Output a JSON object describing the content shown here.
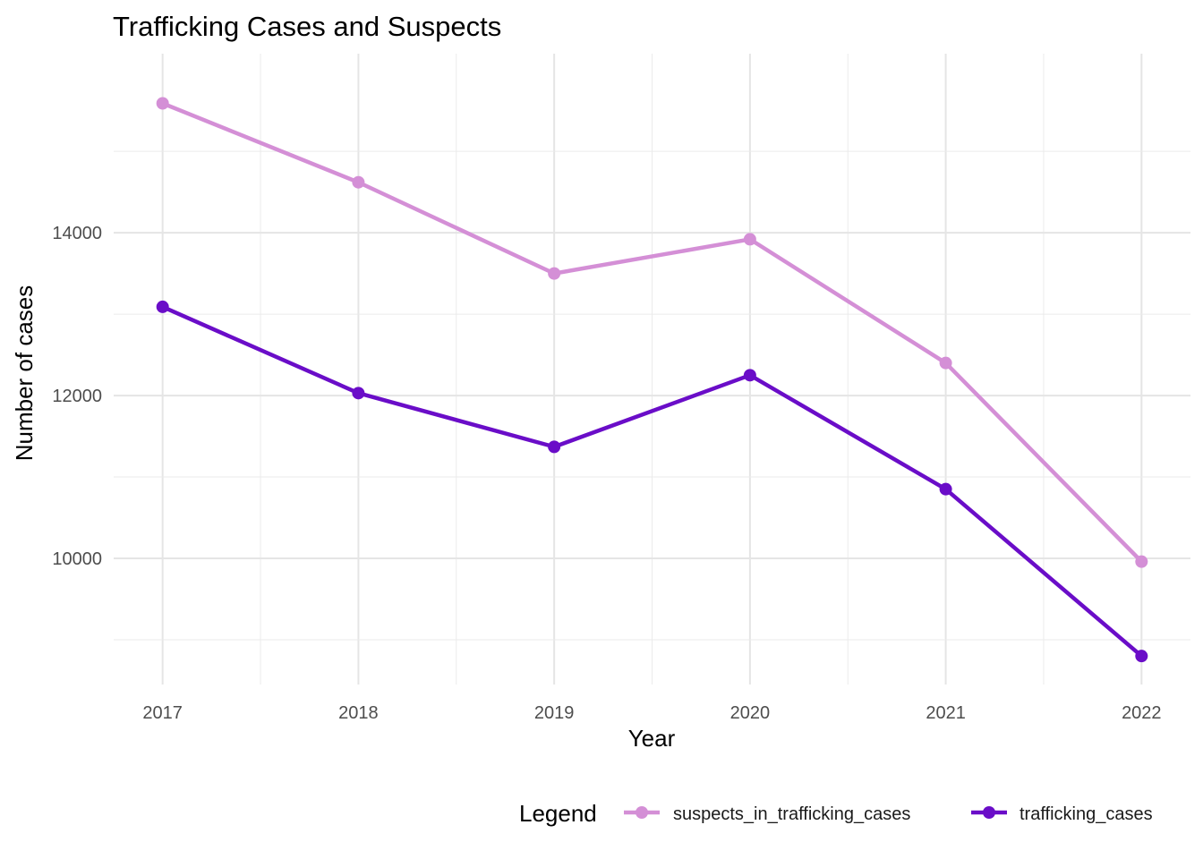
{
  "chart_data": {
    "type": "line",
    "title": "Trafficking Cases and Suspects",
    "xlabel": "Year",
    "ylabel": "Number of cases",
    "x": [
      2017,
      2018,
      2019,
      2020,
      2021,
      2022
    ],
    "x_ticks": [
      "2017",
      "2018",
      "2019",
      "2020",
      "2021",
      "2022"
    ],
    "y_ticks": [
      10000,
      12000,
      14000
    ],
    "y_tick_labels": [
      "10000",
      "12000",
      "14000"
    ],
    "xlim": [
      2016.75,
      2022.25
    ],
    "ylim": [
      8450,
      16200
    ],
    "grid": true,
    "legend": {
      "title": "Legend",
      "position": "bottom-right"
    },
    "series": [
      {
        "name": "suspects_in_trafficking_cases",
        "color": "#d48fd6",
        "values": [
          15590,
          14620,
          13500,
          13920,
          12400,
          9960
        ]
      },
      {
        "name": "trafficking_cases",
        "color": "#6a0dc8",
        "values": [
          13090,
          12030,
          11370,
          12250,
          10850,
          8800
        ]
      }
    ]
  }
}
